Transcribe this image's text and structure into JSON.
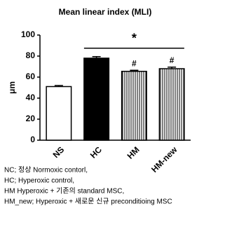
{
  "chart_data": {
    "type": "bar",
    "title": "Mean linear index (MLI)",
    "y_label": "μm",
    "categories": [
      "NS",
      "HC",
      "HM",
      "HM-new"
    ],
    "values": [
      51,
      78,
      65.5,
      68
    ],
    "errors": [
      1,
      1.5,
      1,
      1.5
    ],
    "colors": [
      "#ffffff",
      "#000000",
      "#ffffff",
      "#ffffff"
    ],
    "patterns": [
      null,
      null,
      "vertical-lines",
      "vertical-lines"
    ],
    "annotations": [
      null,
      null,
      "#",
      "#"
    ],
    "significance": {
      "label": "*",
      "from": "HC",
      "to": "HM-new"
    },
    "ylim": [
      0,
      100
    ],
    "yticks": [
      0,
      20,
      40,
      60,
      80,
      100
    ],
    "footnotes": [
      "NC; 정상 Normoxic contorl,",
      "HC; Hyperoxic control,",
      "HM Hyperoxic + 기존의 standard MSC,",
      "HM_new; Hyperoxic + 새로운 신규 preconditioing MSC"
    ]
  }
}
